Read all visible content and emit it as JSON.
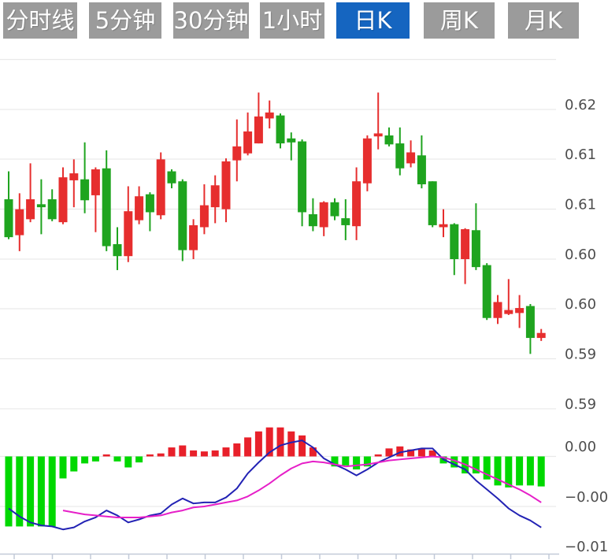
{
  "tabs": {
    "items": [
      {
        "label": "分时线"
      },
      {
        "label": "5分钟"
      },
      {
        "label": "30分钟"
      },
      {
        "label": "1小时"
      },
      {
        "label": "日K"
      },
      {
        "label": "周K"
      },
      {
        "label": "月K"
      }
    ],
    "active_label": "日K",
    "active_index": 4,
    "active_color": "#1565c0",
    "inactive_color": "#9b9b9b",
    "text_color": "#ffffff"
  },
  "axis": {
    "line_color": "#c2cad8",
    "label_color": "#4d4d4d",
    "gridline_color": "#e9e9e9",
    "tick_count": 15
  },
  "chart_data": [
    {
      "type": "candlestick",
      "title": "日K (daily candlestick)",
      "legend_position": "none",
      "grid": true,
      "ylabels": [
        "0.62",
        "0.61",
        "0.61",
        "0.60",
        "0.60",
        "0.59",
        "0.59"
      ],
      "gridline_values": [
        0.625,
        0.62,
        0.615,
        0.61,
        0.605,
        0.6,
        0.595,
        0.59
      ],
      "ylim": [
        0.589,
        0.626
      ],
      "up_color": "#e62e2e",
      "down_color": "#1fa41f",
      "candles_format": "[open, high, low, close] — red = up, green = down",
      "candles": [
        [
          0.611,
          0.6138,
          0.607,
          0.6072
        ],
        [
          0.6074,
          0.6116,
          0.6058,
          0.61
        ],
        [
          0.609,
          0.6146,
          0.6087,
          0.611
        ],
        [
          0.6105,
          0.613,
          0.6075,
          0.6102
        ],
        [
          0.611,
          0.612,
          0.6088,
          0.609
        ],
        [
          0.6087,
          0.6142,
          0.6085,
          0.6132
        ],
        [
          0.6129,
          0.615,
          0.6102,
          0.6136
        ],
        [
          0.613,
          0.6167,
          0.6096,
          0.6109
        ],
        [
          0.6114,
          0.6142,
          0.6077,
          0.614
        ],
        [
          0.6141,
          0.6159,
          0.6058,
          0.6063
        ],
        [
          0.6065,
          0.6082,
          0.6039,
          0.6053
        ],
        [
          0.6053,
          0.6123,
          0.6047,
          0.6098
        ],
        [
          0.6089,
          0.6123,
          0.6085,
          0.6113
        ],
        [
          0.6115,
          0.6117,
          0.6078,
          0.6097
        ],
        [
          0.6094,
          0.6157,
          0.609,
          0.615
        ],
        [
          0.6138,
          0.614,
          0.6121,
          0.6126
        ],
        [
          0.6128,
          0.613,
          0.6048,
          0.6059
        ],
        [
          0.6059,
          0.609,
          0.605,
          0.6084
        ],
        [
          0.6082,
          0.6125,
          0.6075,
          0.6104
        ],
        [
          0.6102,
          0.6134,
          0.6086,
          0.6124
        ],
        [
          0.61,
          0.6151,
          0.6087,
          0.6148
        ],
        [
          0.6149,
          0.619,
          0.6128,
          0.6163
        ],
        [
          0.6156,
          0.6197,
          0.6154,
          0.6178
        ],
        [
          0.6166,
          0.6217,
          0.6166,
          0.6193
        ],
        [
          0.6191,
          0.6209,
          0.6181,
          0.6197
        ],
        [
          0.6194,
          0.6196,
          0.6161,
          0.6166
        ],
        [
          0.6171,
          0.6177,
          0.6149,
          0.6167
        ],
        [
          0.6168,
          0.617,
          0.6083,
          0.6097
        ],
        [
          0.6095,
          0.6111,
          0.6078,
          0.6083
        ],
        [
          0.6082,
          0.6108,
          0.6073,
          0.6107
        ],
        [
          0.6107,
          0.6111,
          0.6089,
          0.6093
        ],
        [
          0.6091,
          0.611,
          0.6069,
          0.6084
        ],
        [
          0.6083,
          0.6142,
          0.6069,
          0.6128
        ],
        [
          0.6126,
          0.6174,
          0.6118,
          0.6171
        ],
        [
          0.6173,
          0.6217,
          0.616,
          0.6176
        ],
        [
          0.6174,
          0.6182,
          0.6163,
          0.6165
        ],
        [
          0.6166,
          0.6182,
          0.6134,
          0.6141
        ],
        [
          0.6146,
          0.6169,
          0.6142,
          0.6157
        ],
        [
          0.6154,
          0.6174,
          0.6121,
          0.6125
        ],
        [
          0.6128,
          0.6128,
          0.6082,
          0.6084
        ],
        [
          0.6082,
          0.61,
          0.6072,
          0.6085
        ],
        [
          0.6085,
          0.6086,
          0.6034,
          0.605
        ],
        [
          0.605,
          0.6081,
          0.6025,
          0.608
        ],
        [
          0.6079,
          0.6106,
          0.6039,
          0.6042
        ],
        [
          0.6044,
          0.6046,
          0.5989,
          0.5991
        ],
        [
          0.5991,
          0.6014,
          0.5985,
          0.6007
        ],
        [
          0.5995,
          0.603,
          0.5994,
          0.5999
        ],
        [
          0.5996,
          0.6014,
          0.5981,
          0.6001
        ],
        [
          0.6003,
          0.6005,
          0.5955,
          0.5971
        ],
        [
          0.5971,
          0.598,
          0.5968,
          0.5976
        ]
      ]
    },
    {
      "type": "macd",
      "title": "MACD",
      "ylabels": [
        "0.00",
        "−0.00",
        "−0.01"
      ],
      "gridline_values": [
        0.0,
        -0.005,
        -0.01
      ],
      "ylim": [
        -0.0105,
        0.0035
      ],
      "hist_up_color": "#e8202a",
      "hist_down_color": "#00d800",
      "dif_color": "#2222b4",
      "dea_color": "#e61fc8",
      "hist": [
        -0.007,
        -0.007,
        -0.007,
        -0.007,
        -0.007,
        -0.0022,
        -0.0015,
        -0.0007,
        -0.0005,
        0.0002,
        -0.0005,
        -0.0011,
        -0.0006,
        0.0002,
        0.0003,
        0.0009,
        0.0011,
        0.0006,
        0.0005,
        0.0006,
        0.0009,
        0.0013,
        0.0019,
        0.0025,
        0.0029,
        0.0029,
        0.0025,
        0.0021,
        0.0009,
        0.0,
        -0.001,
        -0.0009,
        -0.0013,
        -0.001,
        0.0002,
        0.0008,
        0.001,
        0.0007,
        0.0008,
        0.0006,
        -0.0007,
        -0.0011,
        -0.0017,
        -0.0017,
        -0.0023,
        -0.0029,
        -0.0031,
        -0.0029,
        -0.0029,
        -0.003
      ],
      "dif": [
        -0.0052,
        -0.006,
        -0.0066,
        -0.0069,
        -0.007,
        -0.0073,
        -0.0071,
        -0.0065,
        -0.0061,
        -0.0054,
        -0.0059,
        -0.0066,
        -0.0063,
        -0.0059,
        -0.0057,
        -0.0048,
        -0.0042,
        -0.0047,
        -0.0046,
        -0.0046,
        -0.0041,
        -0.0032,
        -0.0017,
        -0.0006,
        0.0004,
        0.0011,
        0.0014,
        0.0016,
        0.0009,
        -0.0002,
        -0.0008,
        -0.0013,
        -0.0019,
        -0.0013,
        -0.0006,
        -0.0001,
        0.0004,
        0.0006,
        0.0008,
        0.0008,
        -0.0003,
        -0.0008,
        -0.0013,
        -0.0024,
        -0.0033,
        -0.0042,
        -0.0052,
        -0.0059,
        -0.0064,
        -0.0071
      ],
      "dea": [
        null,
        null,
        null,
        null,
        null,
        -0.0054,
        -0.0056,
        -0.0058,
        -0.0059,
        -0.006,
        -0.0061,
        -0.0061,
        -0.0061,
        -0.006,
        -0.0059,
        -0.0056,
        -0.0054,
        -0.0051,
        -0.005,
        -0.0048,
        -0.0046,
        -0.0044,
        -0.004,
        -0.0034,
        -0.0027,
        -0.0019,
        -0.0012,
        -0.0007,
        -0.0005,
        -0.0006,
        -0.0008,
        -0.001,
        -0.0009,
        -0.0008,
        -0.0006,
        -0.0004,
        -0.0003,
        -0.0002,
        -0.0001,
        0.0,
        -0.0001,
        -0.0004,
        -0.0008,
        -0.0013,
        -0.0018,
        -0.0023,
        -0.0028,
        -0.0033,
        -0.0039,
        -0.0046
      ]
    }
  ]
}
